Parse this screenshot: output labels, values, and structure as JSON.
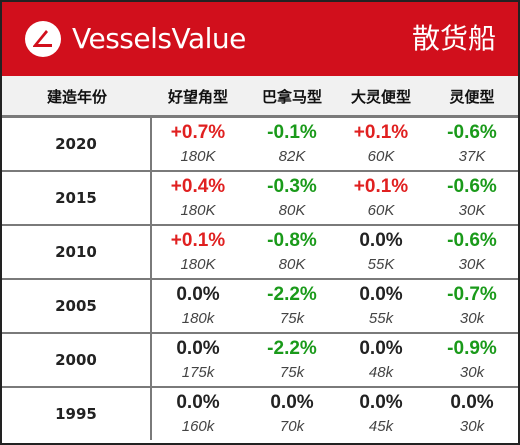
{
  "header": {
    "brand": "VesselsValue",
    "category": "散货船",
    "logo_icon": "vesselsvalue-logo-icon",
    "accent_color": "#d10f1c"
  },
  "columns": {
    "year": "建造年份",
    "c1": "好望角型",
    "c2": "巴拿马型",
    "c3": "大灵便型",
    "c4": "灵便型"
  },
  "rows": [
    {
      "year": "2020",
      "cells": [
        {
          "change": "+0.7%",
          "size": "180K",
          "dir": "pos"
        },
        {
          "change": "-0.1%",
          "size": "82K",
          "dir": "neg"
        },
        {
          "change": "+0.1%",
          "size": "60K",
          "dir": "pos"
        },
        {
          "change": "-0.6%",
          "size": "37K",
          "dir": "neg"
        }
      ]
    },
    {
      "year": "2015",
      "cells": [
        {
          "change": "+0.4%",
          "size": "180K",
          "dir": "pos"
        },
        {
          "change": "-0.3%",
          "size": "80K",
          "dir": "neg"
        },
        {
          "change": "+0.1%",
          "size": "60K",
          "dir": "pos"
        },
        {
          "change": "-0.6%",
          "size": "30K",
          "dir": "neg"
        }
      ]
    },
    {
      "year": "2010",
      "cells": [
        {
          "change": "+0.1%",
          "size": "180K",
          "dir": "pos"
        },
        {
          "change": "-0.8%",
          "size": "80K",
          "dir": "neg"
        },
        {
          "change": "0.0%",
          "size": "55K",
          "dir": "zero"
        },
        {
          "change": "-0.6%",
          "size": "30K",
          "dir": "neg"
        }
      ]
    },
    {
      "year": "2005",
      "cells": [
        {
          "change": "0.0%",
          "size": "180k",
          "dir": "zero"
        },
        {
          "change": "-2.2%",
          "size": "75k",
          "dir": "neg"
        },
        {
          "change": "0.0%",
          "size": "55k",
          "dir": "zero"
        },
        {
          "change": "-0.7%",
          "size": "30k",
          "dir": "neg"
        }
      ]
    },
    {
      "year": "2000",
      "cells": [
        {
          "change": "0.0%",
          "size": "175k",
          "dir": "zero"
        },
        {
          "change": "-2.2%",
          "size": "75k",
          "dir": "neg"
        },
        {
          "change": "0.0%",
          "size": "48k",
          "dir": "zero"
        },
        {
          "change": "-0.9%",
          "size": "30k",
          "dir": "neg"
        }
      ]
    },
    {
      "year": "1995",
      "cells": [
        {
          "change": "0.0%",
          "size": "160k",
          "dir": "zero"
        },
        {
          "change": "0.0%",
          "size": "70k",
          "dir": "zero"
        },
        {
          "change": "0.0%",
          "size": "45k",
          "dir": "zero"
        },
        {
          "change": "0.0%",
          "size": "30k",
          "dir": "zero"
        }
      ]
    }
  ],
  "colors": {
    "positive": "#e02020",
    "negative": "#1a9a1a",
    "neutral": "#222222"
  }
}
